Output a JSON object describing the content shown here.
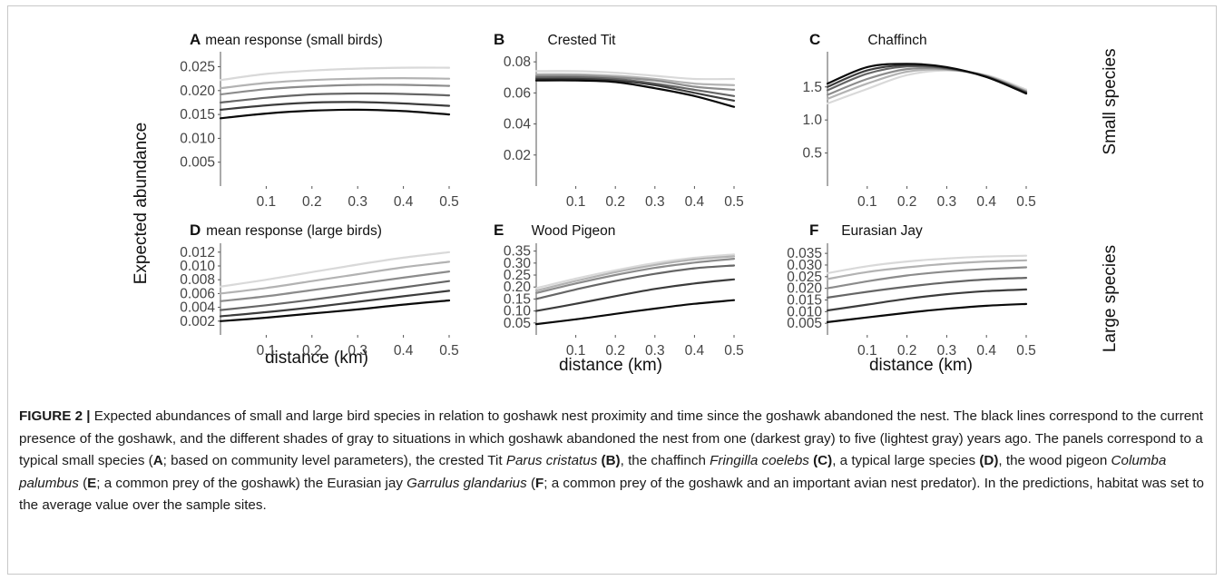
{
  "chart_data": [
    {
      "panel": "A",
      "title": "mean response (small birds)",
      "type": "line",
      "ylim": [
        0,
        0.027
      ],
      "xlim": [
        0,
        0.5
      ],
      "yticks": [
        "0.005",
        "0.010",
        "0.015",
        "0.020",
        "0.025"
      ],
      "xticks": [
        "0.1",
        "0.2",
        "0.3",
        "0.4",
        "0.5"
      ],
      "x": [
        0,
        0.1,
        0.2,
        0.3,
        0.4,
        0.5
      ],
      "series": [
        {
          "values": [
            0.0142,
            0.0152,
            0.0158,
            0.016,
            0.0157,
            0.015
          ]
        },
        {
          "values": [
            0.016,
            0.0169,
            0.0175,
            0.0176,
            0.0173,
            0.0168
          ]
        },
        {
          "values": [
            0.0175,
            0.0185,
            0.0192,
            0.0194,
            0.0193,
            0.019
          ]
        },
        {
          "values": [
            0.0192,
            0.0203,
            0.0209,
            0.0212,
            0.0212,
            0.021
          ]
        },
        {
          "values": [
            0.0205,
            0.0216,
            0.0222,
            0.0225,
            0.0226,
            0.0225
          ]
        },
        {
          "values": [
            0.0222,
            0.0235,
            0.0242,
            0.0246,
            0.0248,
            0.0248
          ]
        }
      ]
    },
    {
      "panel": "B",
      "title": "Crested Tit",
      "type": "line",
      "ylim": [
        0,
        0.083
      ],
      "xlim": [
        0,
        0.5
      ],
      "yticks": [
        "0.02",
        "0.04",
        "0.06",
        "0.08"
      ],
      "xticks": [
        "0.1",
        "0.2",
        "0.3",
        "0.4",
        "0.5"
      ],
      "x": [
        0,
        0.1,
        0.2,
        0.3,
        0.4,
        0.5
      ],
      "series": [
        {
          "values": [
            0.068,
            0.068,
            0.067,
            0.063,
            0.058,
            0.051
          ]
        },
        {
          "values": [
            0.069,
            0.069,
            0.068,
            0.065,
            0.06,
            0.055
          ]
        },
        {
          "values": [
            0.07,
            0.07,
            0.069,
            0.066,
            0.062,
            0.058
          ]
        },
        {
          "values": [
            0.071,
            0.071,
            0.07,
            0.068,
            0.064,
            0.062
          ]
        },
        {
          "values": [
            0.072,
            0.072,
            0.071,
            0.069,
            0.066,
            0.065
          ]
        },
        {
          "values": [
            0.074,
            0.074,
            0.073,
            0.071,
            0.069,
            0.069
          ]
        }
      ]
    },
    {
      "panel": "C",
      "title": "Chaffinch",
      "type": "line",
      "ylim": [
        0,
        1.95
      ],
      "xlim": [
        0,
        0.5
      ],
      "yticks": [
        "0.5",
        "1.0",
        "1.5"
      ],
      "xticks": [
        "0.1",
        "0.2",
        "0.3",
        "0.4",
        "0.5"
      ],
      "x": [
        0,
        0.1,
        0.2,
        0.3,
        0.4,
        0.5
      ],
      "series": [
        {
          "values": [
            1.55,
            1.8,
            1.85,
            1.8,
            1.65,
            1.4
          ]
        },
        {
          "values": [
            1.5,
            1.75,
            1.83,
            1.79,
            1.65,
            1.41
          ]
        },
        {
          "values": [
            1.45,
            1.7,
            1.81,
            1.78,
            1.66,
            1.42
          ]
        },
        {
          "values": [
            1.38,
            1.62,
            1.77,
            1.77,
            1.66,
            1.43
          ]
        },
        {
          "values": [
            1.32,
            1.55,
            1.73,
            1.76,
            1.67,
            1.44
          ]
        },
        {
          "values": [
            1.25,
            1.47,
            1.68,
            1.75,
            1.68,
            1.46
          ]
        }
      ]
    },
    {
      "panel": "D",
      "title": "mean response (large birds)",
      "type": "line",
      "ylim": [
        0,
        0.0125
      ],
      "xlim": [
        0,
        0.5
      ],
      "yticks": [
        "0.002",
        "0.004",
        "0.006",
        "0.008",
        "0.010",
        "0.012"
      ],
      "xticks": [
        "0.1",
        "0.2",
        "0.3",
        "0.4",
        "0.5"
      ],
      "x": [
        0,
        0.1,
        0.2,
        0.3,
        0.4,
        0.5
      ],
      "series": [
        {
          "values": [
            0.002,
            0.0025,
            0.0031,
            0.0037,
            0.0044,
            0.005
          ]
        },
        {
          "values": [
            0.0027,
            0.0033,
            0.004,
            0.0048,
            0.0056,
            0.0064
          ]
        },
        {
          "values": [
            0.0036,
            0.0043,
            0.0051,
            0.006,
            0.0069,
            0.0078
          ]
        },
        {
          "values": [
            0.0049,
            0.0056,
            0.0065,
            0.0074,
            0.0083,
            0.0092
          ]
        },
        {
          "values": [
            0.006,
            0.0068,
            0.0078,
            0.0088,
            0.0098,
            0.0106
          ]
        },
        {
          "values": [
            0.007,
            0.008,
            0.0091,
            0.0102,
            0.0112,
            0.012
          ]
        }
      ]
    },
    {
      "panel": "E",
      "title": "Wood Pigeon",
      "type": "line",
      "ylim": [
        0,
        0.36
      ],
      "xlim": [
        0,
        0.5
      ],
      "yticks": [
        "0.05",
        "0.10",
        "0.15",
        "0.20",
        "0.25",
        "0.30",
        "0.35"
      ],
      "xticks": [
        "0.1",
        "0.2",
        "0.3",
        "0.4",
        "0.5"
      ],
      "x": [
        0,
        0.1,
        0.2,
        0.3,
        0.4,
        0.5
      ],
      "series": [
        {
          "values": [
            0.045,
            0.065,
            0.088,
            0.11,
            0.13,
            0.145
          ]
        },
        {
          "values": [
            0.1,
            0.13,
            0.162,
            0.192,
            0.215,
            0.232
          ]
        },
        {
          "values": [
            0.15,
            0.19,
            0.225,
            0.255,
            0.278,
            0.29
          ]
        },
        {
          "values": [
            0.175,
            0.215,
            0.25,
            0.28,
            0.302,
            0.318
          ]
        },
        {
          "values": [
            0.185,
            0.225,
            0.262,
            0.292,
            0.315,
            0.328
          ]
        },
        {
          "values": [
            0.195,
            0.235,
            0.27,
            0.3,
            0.322,
            0.336
          ]
        }
      ]
    },
    {
      "panel": "F",
      "title": "Eurasian Jay",
      "type": "line",
      "ylim": [
        0,
        0.037
      ],
      "xlim": [
        0,
        0.5
      ],
      "yticks": [
        "0.005",
        "0.010",
        "0.015",
        "0.020",
        "0.025",
        "0.030",
        "0.035"
      ],
      "xticks": [
        "0.1",
        "0.2",
        "0.3",
        "0.4",
        "0.5"
      ],
      "x": [
        0,
        0.1,
        0.2,
        0.3,
        0.4,
        0.5
      ],
      "series": [
        {
          "values": [
            0.0055,
            0.0075,
            0.0095,
            0.0112,
            0.0125,
            0.0133
          ]
        },
        {
          "values": [
            0.0105,
            0.013,
            0.0155,
            0.0175,
            0.0188,
            0.0195
          ]
        },
        {
          "values": [
            0.016,
            0.0185,
            0.0207,
            0.0225,
            0.0238,
            0.0245
          ]
        },
        {
          "values": [
            0.02,
            0.023,
            0.0255,
            0.0272,
            0.0283,
            0.029
          ]
        },
        {
          "values": [
            0.024,
            0.027,
            0.029,
            0.0305,
            0.0315,
            0.032
          ]
        },
        {
          "values": [
            0.0265,
            0.0295,
            0.0315,
            0.0328,
            0.0336,
            0.034
          ]
        }
      ]
    }
  ],
  "series_colors": [
    "#0a0a0a",
    "#3c3c3c",
    "#666666",
    "#8c8c8c",
    "#b3b3b3",
    "#d9d9d9"
  ],
  "figure": {
    "ylabel": "Expected abundance",
    "xlabel": "distance (km)",
    "row_labels": [
      "Small species",
      "Large species"
    ]
  },
  "caption": {
    "label": "FIGURE 2 |",
    "p1": " Expected abundances of small and large bird species in relation to goshawk nest proximity and time since the goshawk abandoned the nest. The black lines correspond to the current presence of the goshawk, and the different shades of gray to situations in which goshawk abandoned the nest from one (darkest gray) to five (lightest gray) years ago. The panels correspond to a typical small species (",
    "A": "A",
    "p2": "; based on community level parameters), the crested Tit ",
    "sp1": "Parus cristatus",
    "B": "(B)",
    "p3": ", the chaffinch ",
    "sp2": "Fringilla coelebs",
    "C": "(C)",
    "p4": ", a typical large species ",
    "D": "(D)",
    "p5": ", the wood pigeon ",
    "sp3": "Columba palumbus",
    "p6": " (",
    "E": "E",
    "p7": "; a common prey of the goshawk) the Eurasian jay ",
    "sp4": "Garrulus glandarius",
    "p8": " (",
    "F": "F",
    "p9": "; a common prey of the goshawk and an important avian nest predator). In the predictions, habitat was set to the average value over the sample sites."
  }
}
